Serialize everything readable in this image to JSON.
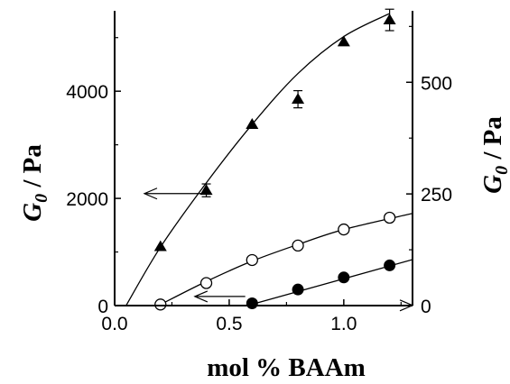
{
  "chart_data": {
    "type": "scatter",
    "title": "",
    "xlabel": "mol % BAAm",
    "ylabel_left": {
      "symbol": "G",
      "subscript": "0",
      "unit": " / Pa"
    },
    "ylabel_right": {
      "symbol": "G",
      "subscript": "0",
      "unit": " / Pa"
    },
    "xlim": [
      0.0,
      1.3
    ],
    "ylim_left": [
      0,
      5500
    ],
    "ylim_right": [
      0,
      660
    ],
    "x_ticks": [
      0.0,
      0.5,
      1.0
    ],
    "x_tick_labels": [
      "0.0",
      "0.5",
      "1.0"
    ],
    "y_left_ticks": [
      0,
      2000,
      4000
    ],
    "y_left_tick_labels": [
      "0",
      "2000",
      "4000"
    ],
    "y_right_ticks": [
      0,
      250,
      500
    ],
    "y_right_tick_labels": [
      "0",
      "250",
      "500"
    ],
    "grid": false,
    "series": [
      {
        "marker": "filled-triangle",
        "axis": "left",
        "points": [
          {
            "x": 0.2,
            "y": 1100
          },
          {
            "x": 0.4,
            "y": 2150,
            "err": 120
          },
          {
            "x": 0.6,
            "y": 3380
          },
          {
            "x": 0.8,
            "y": 3850,
            "err": 160
          },
          {
            "x": 1.0,
            "y": 4920
          },
          {
            "x": 1.2,
            "y": 5330,
            "err": 200
          }
        ],
        "fit": [
          [
            0.05,
            0
          ],
          [
            0.2,
            1090
          ],
          [
            0.4,
            2290
          ],
          [
            0.6,
            3380
          ],
          [
            0.8,
            4330
          ],
          [
            1.0,
            5020
          ],
          [
            1.2,
            5450
          ]
        ]
      },
      {
        "marker": "open-circle",
        "axis": "left",
        "points": [
          {
            "x": 0.2,
            "y": 20
          },
          {
            "x": 0.4,
            "y": 420
          },
          {
            "x": 0.6,
            "y": 850
          },
          {
            "x": 0.8,
            "y": 1120
          },
          {
            "x": 1.0,
            "y": 1420
          },
          {
            "x": 1.2,
            "y": 1640
          }
        ],
        "fit": [
          [
            0.2,
            20
          ],
          [
            0.4,
            450
          ],
          [
            0.6,
            830
          ],
          [
            0.8,
            1140
          ],
          [
            1.0,
            1420
          ],
          [
            1.3,
            1720
          ]
        ]
      },
      {
        "marker": "filled-circle",
        "axis": "right",
        "points": [
          {
            "x": 0.6,
            "y": 5
          },
          {
            "x": 0.8,
            "y": 36
          },
          {
            "x": 1.0,
            "y": 63
          },
          {
            "x": 1.2,
            "y": 90
          }
        ],
        "fit": [
          [
            0.58,
            0
          ],
          [
            1.3,
            103
          ]
        ]
      }
    ],
    "annotations": [
      {
        "type": "arrow",
        "direction": "left",
        "from": [
          0.4,
          2090
        ],
        "to": [
          0.13,
          2090
        ]
      },
      {
        "type": "arrow",
        "direction": "left",
        "from": [
          0.57,
          170
        ],
        "to": [
          0.35,
          170
        ]
      },
      {
        "type": "arrow",
        "direction": "right",
        "from": [
          1.15,
          4
        ],
        "to": [
          1.3,
          4
        ]
      }
    ]
  }
}
